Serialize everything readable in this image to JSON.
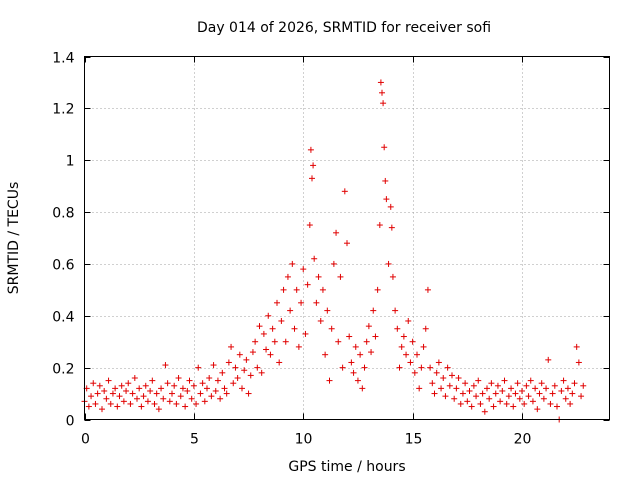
{
  "chart_data": {
    "type": "scatter",
    "title": "Day 014 of 2026, SRMTID for receiver sofi",
    "xlabel": "GPS time / hours",
    "ylabel": "SRMTID / TECUs",
    "xlim": [
      0,
      24
    ],
    "ylim": [
      0,
      1.4
    ],
    "xticks": [
      0,
      5,
      10,
      15,
      20
    ],
    "xtick_labels": [
      "0",
      "5",
      "10",
      "15",
      "20"
    ],
    "yticks": [
      0,
      0.2,
      0.4,
      0.6,
      0.8,
      1,
      1.2,
      1.4
    ],
    "ytick_labels": [
      "0",
      "0.2",
      "0.4",
      "0.6",
      "0.8",
      "1",
      "1.2",
      "1.4"
    ],
    "grid": true,
    "marker": "plus",
    "series": [
      {
        "name": "SRMTID",
        "color": "#e00000",
        "points": [
          [
            0.0,
            0.07
          ],
          [
            0.1,
            0.12
          ],
          [
            0.2,
            0.05
          ],
          [
            0.3,
            0.09
          ],
          [
            0.4,
            0.14
          ],
          [
            0.5,
            0.06
          ],
          [
            0.6,
            0.1
          ],
          [
            0.7,
            0.13
          ],
          [
            0.8,
            0.04
          ],
          [
            0.9,
            0.11
          ],
          [
            1.0,
            0.08
          ],
          [
            1.1,
            0.15
          ],
          [
            1.2,
            0.06
          ],
          [
            1.3,
            0.1
          ],
          [
            1.4,
            0.12
          ],
          [
            1.5,
            0.05
          ],
          [
            1.6,
            0.09
          ],
          [
            1.7,
            0.13
          ],
          [
            1.8,
            0.07
          ],
          [
            1.9,
            0.11
          ],
          [
            2.0,
            0.14
          ],
          [
            2.1,
            0.06
          ],
          [
            2.2,
            0.1
          ],
          [
            2.3,
            0.16
          ],
          [
            2.4,
            0.08
          ],
          [
            2.5,
            0.12
          ],
          [
            2.6,
            0.05
          ],
          [
            2.7,
            0.09
          ],
          [
            2.8,
            0.13
          ],
          [
            2.9,
            0.07
          ],
          [
            3.0,
            0.11
          ],
          [
            3.1,
            0.15
          ],
          [
            3.2,
            0.06
          ],
          [
            3.3,
            0.1
          ],
          [
            3.4,
            0.04
          ],
          [
            3.5,
            0.12
          ],
          [
            3.6,
            0.08
          ],
          [
            3.7,
            0.21
          ],
          [
            3.8,
            0.14
          ],
          [
            3.9,
            0.07
          ],
          [
            4.0,
            0.1
          ],
          [
            4.1,
            0.13
          ],
          [
            4.2,
            0.06
          ],
          [
            4.3,
            0.16
          ],
          [
            4.4,
            0.09
          ],
          [
            4.5,
            0.12
          ],
          [
            4.6,
            0.05
          ],
          [
            4.7,
            0.11
          ],
          [
            4.8,
            0.15
          ],
          [
            4.9,
            0.08
          ],
          [
            5.0,
            0.13
          ],
          [
            5.1,
            0.06
          ],
          [
            5.2,
            0.2
          ],
          [
            5.3,
            0.1
          ],
          [
            5.4,
            0.14
          ],
          [
            5.5,
            0.07
          ],
          [
            5.6,
            0.12
          ],
          [
            5.7,
            0.16
          ],
          [
            5.8,
            0.09
          ],
          [
            5.9,
            0.21
          ],
          [
            6.0,
            0.11
          ],
          [
            6.1,
            0.15
          ],
          [
            6.2,
            0.08
          ],
          [
            6.3,
            0.18
          ],
          [
            6.4,
            0.12
          ],
          [
            6.5,
            0.1
          ],
          [
            6.6,
            0.22
          ],
          [
            6.7,
            0.28
          ],
          [
            6.8,
            0.14
          ],
          [
            6.9,
            0.2
          ],
          [
            7.0,
            0.16
          ],
          [
            7.1,
            0.25
          ],
          [
            7.2,
            0.12
          ],
          [
            7.3,
            0.19
          ],
          [
            7.4,
            0.23
          ],
          [
            7.5,
            0.1
          ],
          [
            7.6,
            0.17
          ],
          [
            7.7,
            0.26
          ],
          [
            7.8,
            0.3
          ],
          [
            7.9,
            0.2
          ],
          [
            8.0,
            0.36
          ],
          [
            8.1,
            0.18
          ],
          [
            8.2,
            0.33
          ],
          [
            8.3,
            0.27
          ],
          [
            8.4,
            0.4
          ],
          [
            8.5,
            0.25
          ],
          [
            8.6,
            0.35
          ],
          [
            8.7,
            0.3
          ],
          [
            8.8,
            0.45
          ],
          [
            8.9,
            0.22
          ],
          [
            9.0,
            0.38
          ],
          [
            9.1,
            0.5
          ],
          [
            9.2,
            0.3
          ],
          [
            9.3,
            0.55
          ],
          [
            9.4,
            0.42
          ],
          [
            9.5,
            0.6
          ],
          [
            9.6,
            0.35
          ],
          [
            9.7,
            0.5
          ],
          [
            9.8,
            0.28
          ],
          [
            9.9,
            0.45
          ],
          [
            10.0,
            0.58
          ],
          [
            10.1,
            0.33
          ],
          [
            10.2,
            0.52
          ],
          [
            10.3,
            0.75
          ],
          [
            10.35,
            1.04
          ],
          [
            10.4,
            0.93
          ],
          [
            10.45,
            0.98
          ],
          [
            10.5,
            0.62
          ],
          [
            10.6,
            0.45
          ],
          [
            10.7,
            0.55
          ],
          [
            10.8,
            0.38
          ],
          [
            10.9,
            0.5
          ],
          [
            11.0,
            0.25
          ],
          [
            11.1,
            0.42
          ],
          [
            11.2,
            0.15
          ],
          [
            11.3,
            0.35
          ],
          [
            11.4,
            0.6
          ],
          [
            11.5,
            0.72
          ],
          [
            11.6,
            0.3
          ],
          [
            11.7,
            0.55
          ],
          [
            11.8,
            0.2
          ],
          [
            11.9,
            0.88
          ],
          [
            12.0,
            0.68
          ],
          [
            12.1,
            0.32
          ],
          [
            12.2,
            0.22
          ],
          [
            12.3,
            0.18
          ],
          [
            12.4,
            0.28
          ],
          [
            12.5,
            0.15
          ],
          [
            12.6,
            0.25
          ],
          [
            12.7,
            0.12
          ],
          [
            12.8,
            0.2
          ],
          [
            12.9,
            0.3
          ],
          [
            13.0,
            0.36
          ],
          [
            13.1,
            0.26
          ],
          [
            13.2,
            0.42
          ],
          [
            13.3,
            0.32
          ],
          [
            13.4,
            0.5
          ],
          [
            13.5,
            0.75
          ],
          [
            13.55,
            1.3
          ],
          [
            13.6,
            1.26
          ],
          [
            13.65,
            1.22
          ],
          [
            13.7,
            1.05
          ],
          [
            13.75,
            0.92
          ],
          [
            13.8,
            0.85
          ],
          [
            13.9,
            0.6
          ],
          [
            14.0,
            0.82
          ],
          [
            14.05,
            0.74
          ],
          [
            14.1,
            0.55
          ],
          [
            14.2,
            0.42
          ],
          [
            14.3,
            0.35
          ],
          [
            14.4,
            0.2
          ],
          [
            14.5,
            0.28
          ],
          [
            14.6,
            0.32
          ],
          [
            14.7,
            0.25
          ],
          [
            14.8,
            0.38
          ],
          [
            14.9,
            0.22
          ],
          [
            15.0,
            0.3
          ],
          [
            15.1,
            0.18
          ],
          [
            15.2,
            0.25
          ],
          [
            15.3,
            0.12
          ],
          [
            15.4,
            0.2
          ],
          [
            15.5,
            0.28
          ],
          [
            15.6,
            0.35
          ],
          [
            15.7,
            0.5
          ],
          [
            15.8,
            0.2
          ],
          [
            15.9,
            0.14
          ],
          [
            16.0,
            0.1
          ],
          [
            16.1,
            0.18
          ],
          [
            16.2,
            0.22
          ],
          [
            16.3,
            0.12
          ],
          [
            16.4,
            0.16
          ],
          [
            16.5,
            0.09
          ],
          [
            16.6,
            0.2
          ],
          [
            16.7,
            0.13
          ],
          [
            16.8,
            0.17
          ],
          [
            16.9,
            0.08
          ],
          [
            17.0,
            0.12
          ],
          [
            17.1,
            0.16
          ],
          [
            17.2,
            0.06
          ],
          [
            17.3,
            0.1
          ],
          [
            17.4,
            0.14
          ],
          [
            17.5,
            0.07
          ],
          [
            17.6,
            0.11
          ],
          [
            17.7,
            0.05
          ],
          [
            17.8,
            0.13
          ],
          [
            17.9,
            0.09
          ],
          [
            18.0,
            0.15
          ],
          [
            18.1,
            0.06
          ],
          [
            18.2,
            0.1
          ],
          [
            18.3,
            0.03
          ],
          [
            18.4,
            0.12
          ],
          [
            18.5,
            0.08
          ],
          [
            18.6,
            0.14
          ],
          [
            18.7,
            0.05
          ],
          [
            18.8,
            0.1
          ],
          [
            18.9,
            0.13
          ],
          [
            19.0,
            0.07
          ],
          [
            19.1,
            0.11
          ],
          [
            19.2,
            0.15
          ],
          [
            19.3,
            0.06
          ],
          [
            19.4,
            0.09
          ],
          [
            19.5,
            0.12
          ],
          [
            19.6,
            0.05
          ],
          [
            19.7,
            0.1
          ],
          [
            19.8,
            0.14
          ],
          [
            19.9,
            0.08
          ],
          [
            20.0,
            0.11
          ],
          [
            20.1,
            0.06
          ],
          [
            20.2,
            0.13
          ],
          [
            20.3,
            0.09
          ],
          [
            20.4,
            0.15
          ],
          [
            20.5,
            0.07
          ],
          [
            20.6,
            0.12
          ],
          [
            20.7,
            0.04
          ],
          [
            20.8,
            0.1
          ],
          [
            20.9,
            0.14
          ],
          [
            21.0,
            0.08
          ],
          [
            21.1,
            0.12
          ],
          [
            21.2,
            0.23
          ],
          [
            21.3,
            0.06
          ],
          [
            21.4,
            0.1
          ],
          [
            21.5,
            0.13
          ],
          [
            21.6,
            0.05
          ],
          [
            21.7,
            0.0
          ],
          [
            21.8,
            0.11
          ],
          [
            21.9,
            0.15
          ],
          [
            22.0,
            0.08
          ],
          [
            22.1,
            0.12
          ],
          [
            22.2,
            0.06
          ],
          [
            22.3,
            0.1
          ],
          [
            22.4,
            0.14
          ],
          [
            22.5,
            0.28
          ],
          [
            22.6,
            0.22
          ],
          [
            22.7,
            0.09
          ],
          [
            22.8,
            0.13
          ]
        ]
      }
    ]
  }
}
